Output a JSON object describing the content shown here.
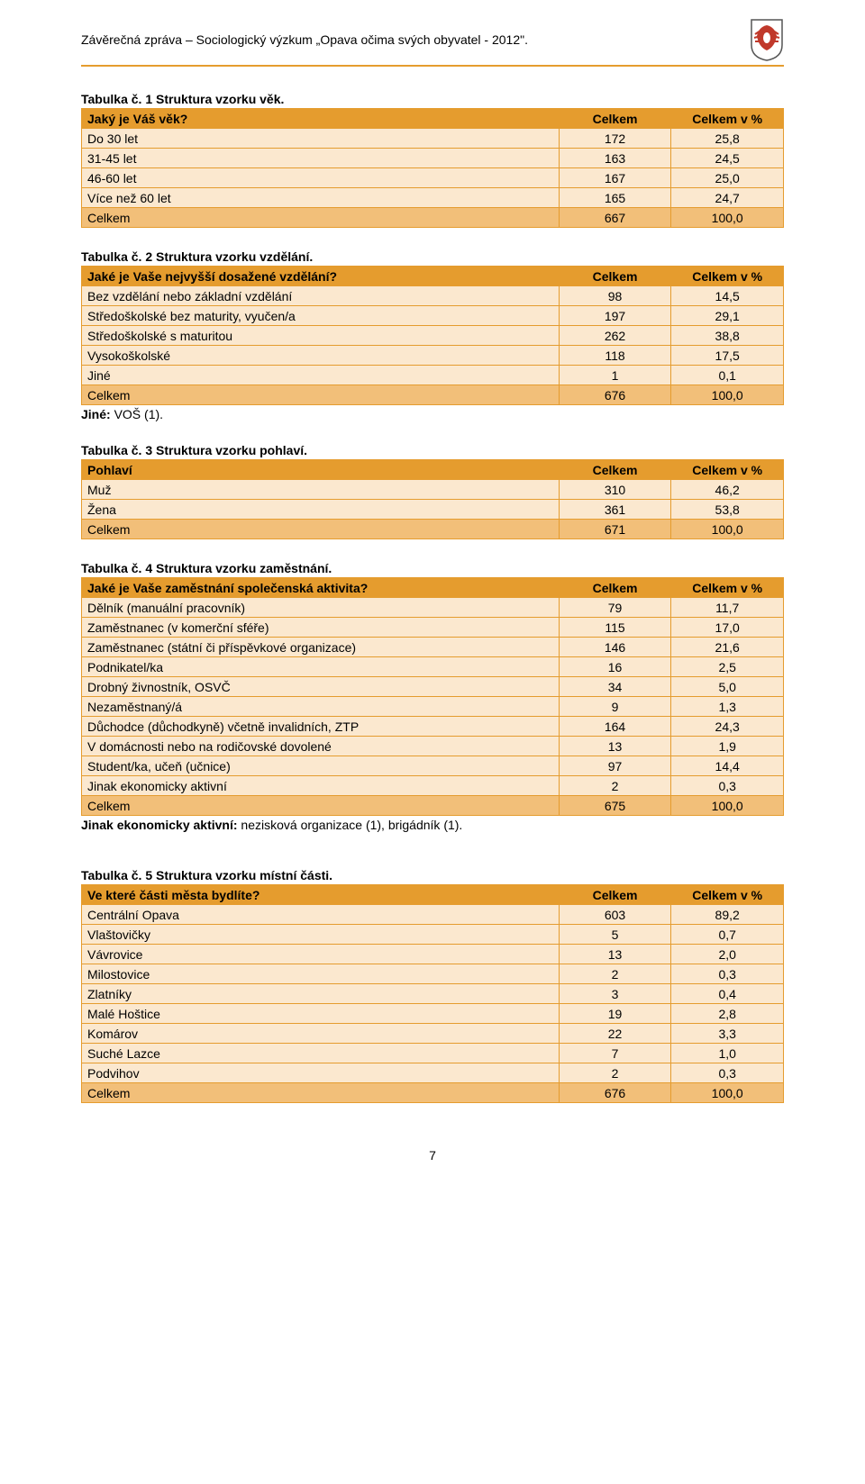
{
  "header": {
    "title": "Závěrečná zpráva – Sociologický výzkum „Opava očima svých obyvatel - 2012\"."
  },
  "colors": {
    "accent": "#e59c2e",
    "row_light": "#fbe8cf",
    "total_row": "#f2bf79",
    "background": "#ffffff",
    "text": "#000000"
  },
  "crest": {
    "shield_bg": "#ffffff",
    "shield_border": "#555555",
    "eagle": "#c0392b",
    "eagle_chest": "#ffffff"
  },
  "page_number": "7",
  "tables": [
    {
      "title": "Tabulka č. 1 Struktura vzorku věk.",
      "header": [
        "Jaký je Váš věk?",
        "Celkem",
        "Celkem v %"
      ],
      "rows": [
        [
          "Do 30 let",
          "172",
          "25,8"
        ],
        [
          "31-45 let",
          "163",
          "24,5"
        ],
        [
          "46-60 let",
          "167",
          "25,0"
        ],
        [
          "Více než 60 let",
          "165",
          "24,7"
        ]
      ],
      "total": [
        "Celkem",
        "667",
        "100,0"
      ]
    },
    {
      "title": "Tabulka č. 2 Struktura vzorku vzdělání.",
      "header": [
        "Jaké je Vaše nejvyšší dosažené vzdělání?",
        "Celkem",
        "Celkem v %"
      ],
      "rows": [
        [
          "Bez vzdělání nebo základní vzdělání",
          "98",
          "14,5"
        ],
        [
          "Středoškolské bez maturity, vyučen/a",
          "197",
          "29,1"
        ],
        [
          "Středoškolské s maturitou",
          "262",
          "38,8"
        ],
        [
          "Vysokoškolské",
          "118",
          "17,5"
        ],
        [
          "Jiné",
          "1",
          "0,1"
        ]
      ],
      "total": [
        "Celkem",
        "676",
        "100,0"
      ],
      "note_prefix": "Jiné:",
      "note_rest": " VOŠ (1)."
    },
    {
      "title": "Tabulka č. 3 Struktura vzorku pohlaví.",
      "header": [
        "Pohlaví",
        "Celkem",
        "Celkem v %"
      ],
      "rows": [
        [
          "Muž",
          "310",
          "46,2"
        ],
        [
          "Žena",
          "361",
          "53,8"
        ]
      ],
      "total": [
        "Celkem",
        "671",
        "100,0"
      ]
    },
    {
      "title": "Tabulka č. 4 Struktura vzorku zaměstnání.",
      "header": [
        "Jaké je Vaše zaměstnání společenská aktivita?",
        "Celkem",
        "Celkem v %"
      ],
      "rows": [
        [
          "Dělník (manuální pracovník)",
          "79",
          "11,7"
        ],
        [
          "Zaměstnanec (v komerční sféře)",
          "115",
          "17,0"
        ],
        [
          "Zaměstnanec (státní či příspěvkové organizace)",
          "146",
          "21,6"
        ],
        [
          "Podnikatel/ka",
          "16",
          "2,5"
        ],
        [
          "Drobný živnostník, OSVČ",
          "34",
          "5,0"
        ],
        [
          "Nezaměstnaný/á",
          "9",
          "1,3"
        ],
        [
          "Důchodce (důchodkyně) včetně invalidních, ZTP",
          "164",
          "24,3"
        ],
        [
          "V domácnosti nebo na rodičovské dovolené",
          "13",
          "1,9"
        ],
        [
          "Student/ka, učeň (učnice)",
          "97",
          "14,4"
        ],
        [
          "Jinak ekonomicky aktivní",
          "2",
          "0,3"
        ]
      ],
      "total": [
        "Celkem",
        "675",
        "100,0"
      ],
      "note_prefix": "Jinak ekonomicky aktivní:",
      "note_rest": " nezisková organizace (1), brigádník (1)."
    },
    {
      "title": "Tabulka č. 5 Struktura vzorku místní části.",
      "header": [
        "Ve které části města bydlíte?",
        "Celkem",
        "Celkem v %"
      ],
      "rows": [
        [
          "Centrální Opava",
          "603",
          "89,2"
        ],
        [
          "Vlaštovičky",
          "5",
          "0,7"
        ],
        [
          "Vávrovice",
          "13",
          "2,0"
        ],
        [
          "Milostovice",
          "2",
          "0,3"
        ],
        [
          "Zlatníky",
          "3",
          "0,4"
        ],
        [
          "Malé Hoštice",
          "19",
          "2,8"
        ],
        [
          "Komárov",
          "22",
          "3,3"
        ],
        [
          "Suché Lazce",
          "7",
          "1,0"
        ],
        [
          "Podvihov",
          "2",
          "0,3"
        ]
      ],
      "total": [
        "Celkem",
        "676",
        "100,0"
      ],
      "extra_top_margin": true
    }
  ]
}
